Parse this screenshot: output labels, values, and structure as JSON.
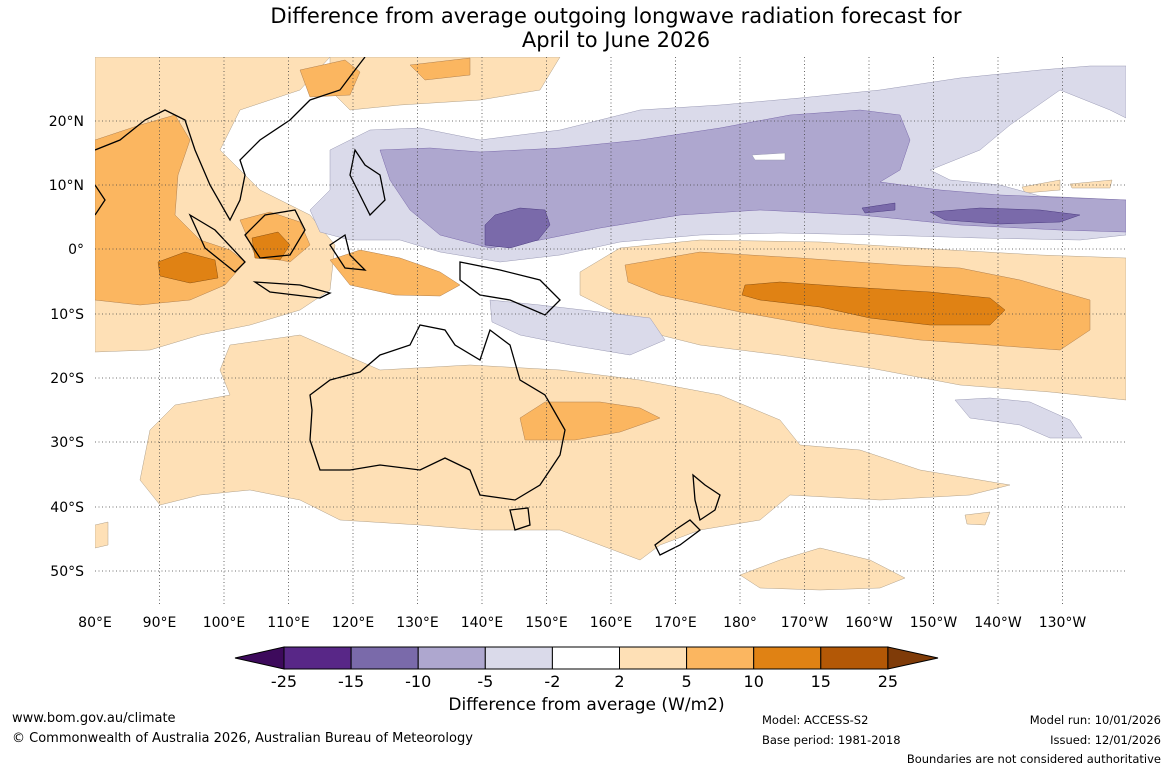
{
  "title_line1": "Difference from average outgoing longwave radiation forecast for",
  "title_line2": "April to June 2026",
  "lat_labels": [
    "20°N",
    "10°N",
    "0°",
    "10°S",
    "20°S",
    "30°S",
    "40°S",
    "50°S"
  ],
  "lon_labels": [
    "80°E",
    "90°E",
    "100°E",
    "110°E",
    "120°E",
    "130°E",
    "140°E",
    "150°E",
    "160°E",
    "170°E",
    "180°",
    "170°W",
    "160°W",
    "150°W",
    "140°W",
    "130°W"
  ],
  "colorbar": {
    "labels": [
      "-25",
      "-15",
      "-10",
      "-5",
      "-2",
      "2",
      "5",
      "10",
      "15",
      "25"
    ],
    "colors": [
      "#3d0a5c",
      "#582787",
      "#7a6aaa",
      "#aea7cf",
      "#dadaea",
      "#ffffff",
      "#fee0b6",
      "#fbb660",
      "#e08214",
      "#b35806",
      "#7f3b08"
    ],
    "title": "Difference from average (W/m2)"
  },
  "footer": {
    "url": "www.bom.gov.au/climate",
    "copyright": "© Commonwealth of Australia 2026, Australian Bureau of Meteorology",
    "model": "Model: ACCESS-S2",
    "base_period": "Base period: 1981-2018",
    "model_run": "Model run: 10/01/2026",
    "issued": "Issued: 12/01/2026",
    "disclaimer": "Boundaries are not considered authoritative"
  }
}
